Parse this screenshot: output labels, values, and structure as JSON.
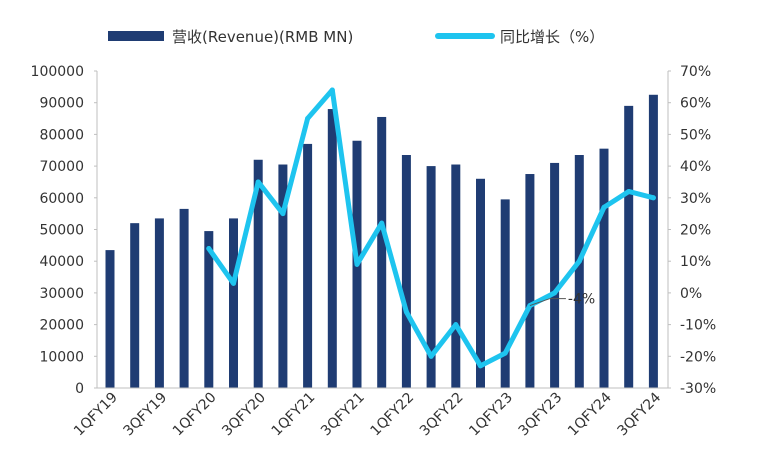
{
  "chart_data": {
    "type": "bar+line",
    "categories": [
      "1QFY19",
      "2QFY19",
      "3QFY19",
      "4QFY19",
      "1QFY20",
      "2QFY20",
      "3QFY20",
      "4QFY20",
      "1QFY21",
      "2QFY21",
      "3QFY21",
      "4QFY21",
      "1QFY22",
      "2QFY22",
      "3QFY22",
      "4QFY22",
      "1QFY23",
      "2QFY23",
      "3QFY23",
      "4QFY23",
      "1QFY24",
      "2QFY24",
      "3QFY24",
      "4QFY24"
    ],
    "x_tick_labels": [
      "1QFY19",
      "3QFY19",
      "1QFY20",
      "3QFY20",
      "1QFY21",
      "3QFY21",
      "1QFY22",
      "3QFY22",
      "1QFY23",
      "3QFY23",
      "1QFY24",
      "3QFY24"
    ],
    "series": [
      {
        "name": "营收(Revenue)(RMB MN)",
        "type": "bar",
        "axis": "left",
        "color": "#1f3c73",
        "values": [
          43500,
          52000,
          53500,
          56500,
          49500,
          53500,
          72000,
          70500,
          77000,
          88000,
          78000,
          85500,
          73500,
          70000,
          70500,
          66000,
          59500,
          67500,
          71000,
          73500,
          75500,
          89000,
          92500,
          null
        ]
      },
      {
        "name": "同比增长（%）",
        "type": "line",
        "axis": "right",
        "color": "#1ec4ef",
        "values": [
          null,
          null,
          null,
          null,
          14,
          3,
          35,
          25,
          55,
          64,
          9,
          22,
          -6,
          -20,
          -10,
          -23,
          -19,
          -4,
          0,
          10,
          27,
          32,
          30,
          null
        ]
      }
    ],
    "left_axis": {
      "min": 0,
      "max": 100000,
      "step": 10000,
      "ticks": [
        "0",
        "10000",
        "20000",
        "30000",
        "40000",
        "50000",
        "60000",
        "70000",
        "80000",
        "90000",
        "100000"
      ]
    },
    "right_axis": {
      "min": -30,
      "max": 70,
      "step": 10,
      "ticks": [
        "-30%",
        "-20%",
        "-10%",
        "0%",
        "10%",
        "20%",
        "30%",
        "40%",
        "50%",
        "60%",
        "70%"
      ]
    },
    "annotation": {
      "text": "-4%",
      "category_index": 17,
      "value": -4
    },
    "legend_position": "top",
    "grid": false
  }
}
